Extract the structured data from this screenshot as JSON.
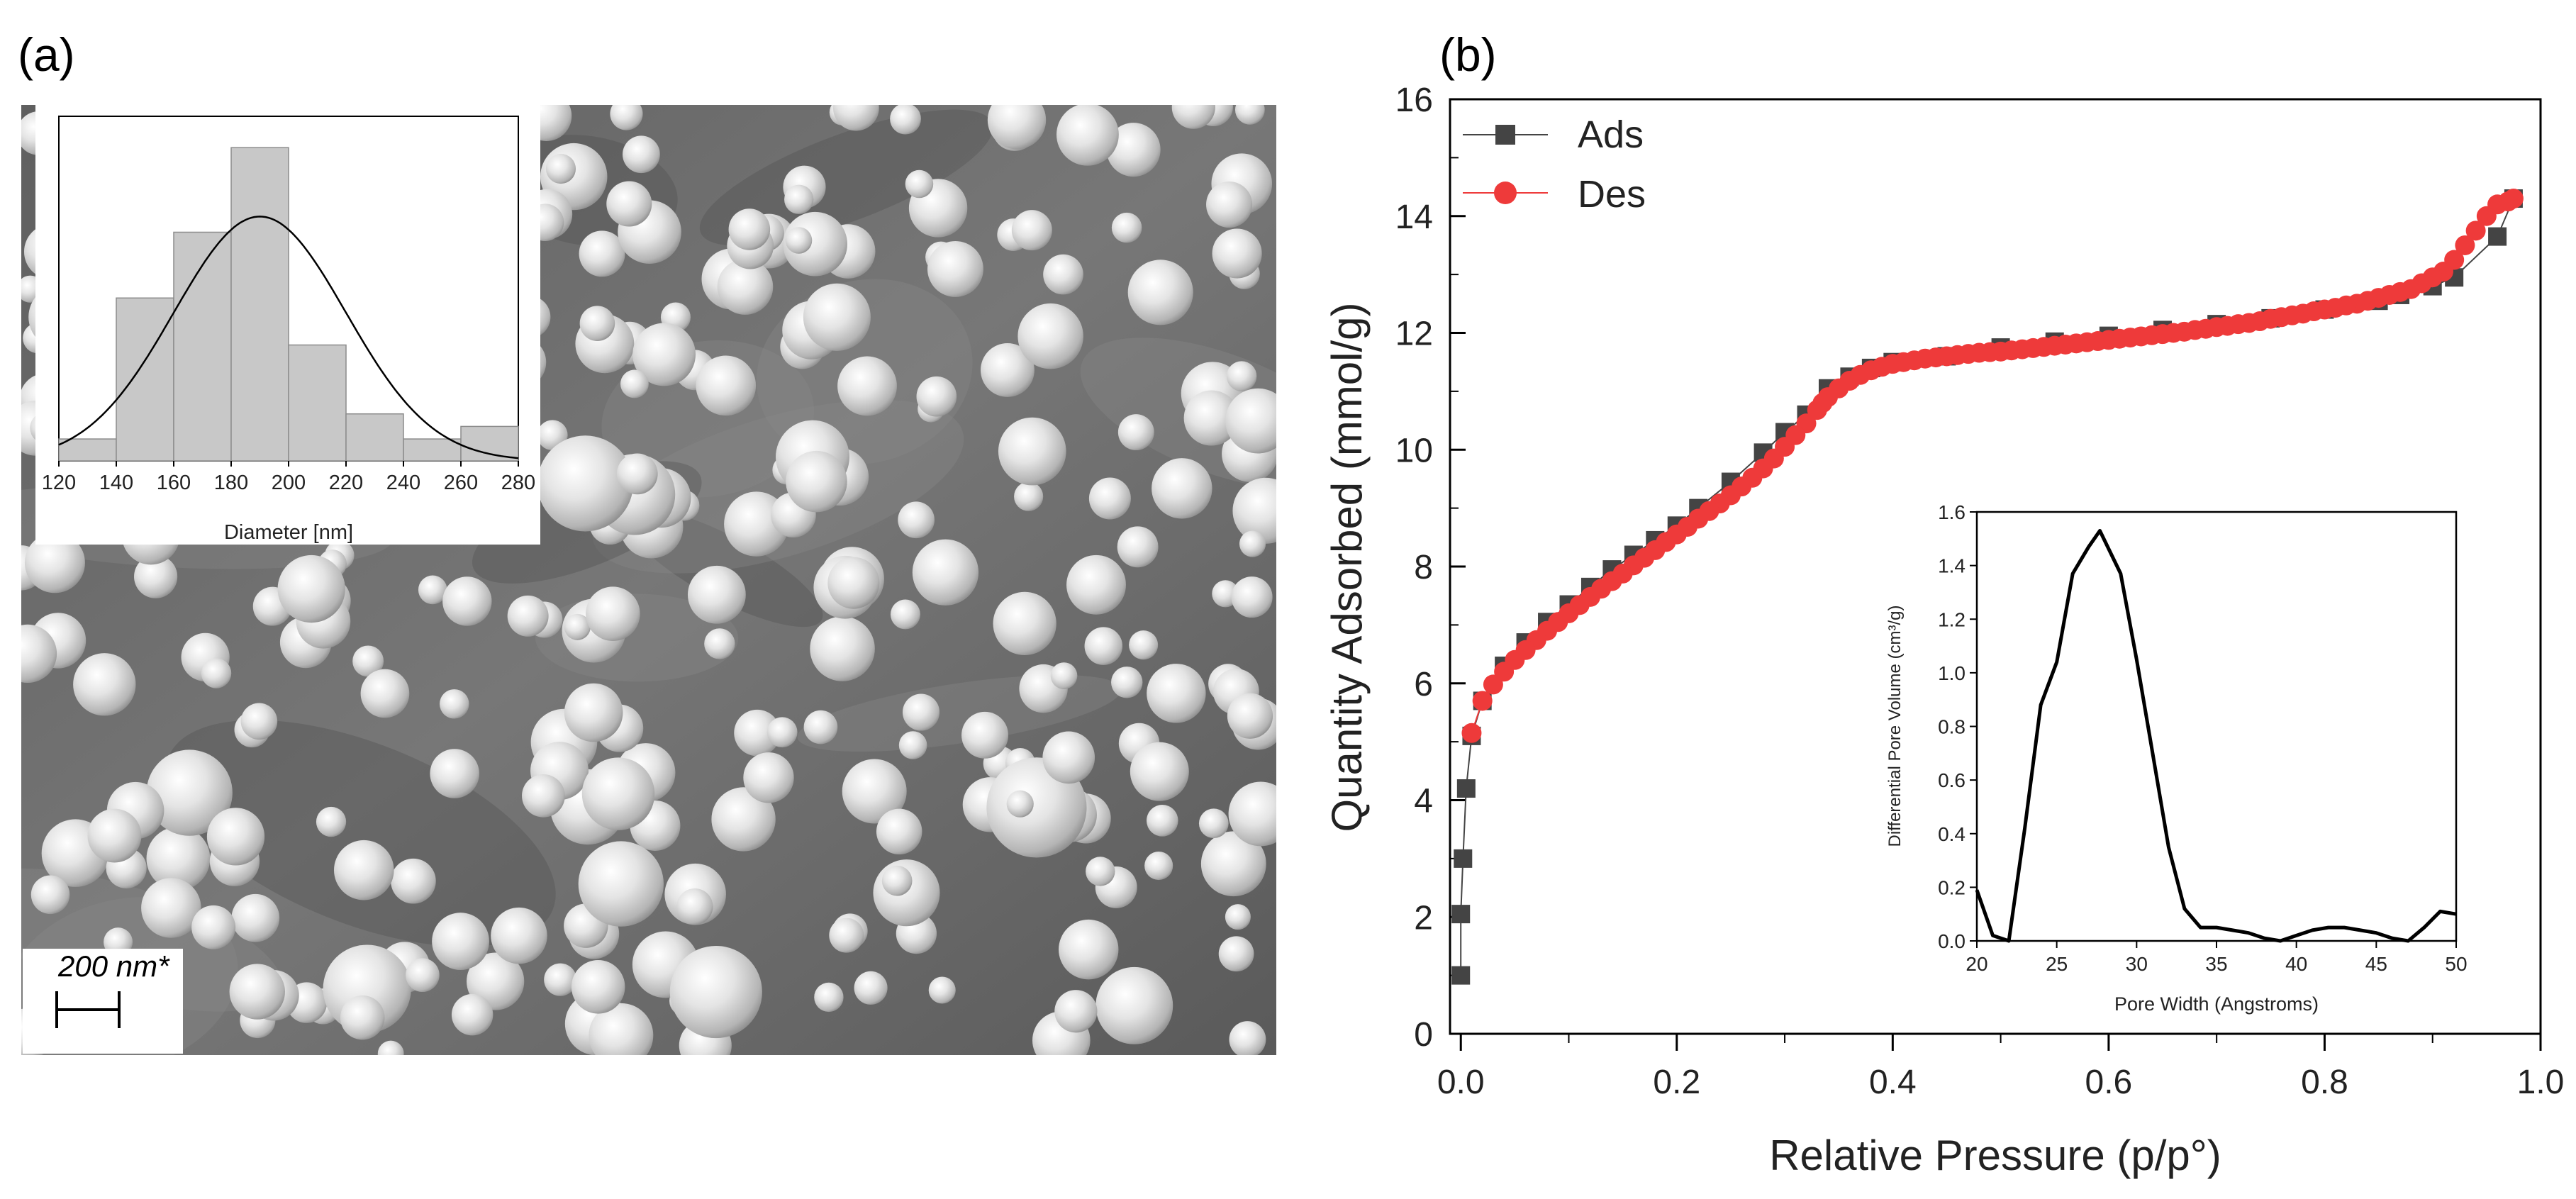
{
  "panels": {
    "a": {
      "label": "(a)",
      "scale_bar_text": "200 nm*"
    },
    "b": {
      "label": "(b)"
    }
  },
  "chart_data": [
    {
      "id": "histogram-inset",
      "type": "bar",
      "xlabel": "Diameter [nm]",
      "ylabel": "",
      "title": "",
      "x_ticks": [
        120,
        140,
        160,
        180,
        200,
        220,
        240,
        260,
        280
      ],
      "bins": [
        {
          "x0": 120,
          "x1": 140,
          "count": 0.07
        },
        {
          "x0": 140,
          "x1": 160,
          "count": 0.52
        },
        {
          "x0": 160,
          "x1": 180,
          "count": 0.73
        },
        {
          "x0": 180,
          "x1": 200,
          "count": 1.0
        },
        {
          "x0": 200,
          "x1": 220,
          "count": 0.37
        },
        {
          "x0": 220,
          "x1": 240,
          "count": 0.15
        },
        {
          "x0": 240,
          "x1": 260,
          "count": 0.07
        },
        {
          "x0": 260,
          "x1": 280,
          "count": 0.11
        }
      ],
      "fit": {
        "type": "gaussian",
        "mean": 190,
        "sigma": 30,
        "peak": 0.78
      },
      "bar_color": "#c8c8c8",
      "ylim": [
        0,
        1.1
      ],
      "xlim": [
        120,
        280
      ]
    },
    {
      "id": "isotherm",
      "type": "line",
      "xlabel": "Relative Pressure (p/p°)",
      "ylabel": "Quantity Adsorbed (mmol/g)",
      "title": "",
      "xlim": [
        -0.01,
        1.0
      ],
      "ylim": [
        0,
        16
      ],
      "x_ticks": [
        "0.0",
        "0.2",
        "0.4",
        "0.6",
        "0.8",
        "1.0"
      ],
      "y_ticks": [
        "0",
        "2",
        "4",
        "6",
        "8",
        "10",
        "12",
        "14",
        "16"
      ],
      "legend_position": "top-left",
      "series": [
        {
          "name": "Ads",
          "color": "#444444",
          "marker": "square",
          "x": [
            0.0,
            0.0,
            0.002,
            0.005,
            0.01,
            0.02,
            0.04,
            0.06,
            0.08,
            0.1,
            0.12,
            0.14,
            0.16,
            0.18,
            0.2,
            0.22,
            0.25,
            0.28,
            0.3,
            0.32,
            0.34,
            0.36,
            0.38,
            0.4,
            0.45,
            0.5,
            0.55,
            0.6,
            0.65,
            0.7,
            0.75,
            0.8,
            0.85,
            0.87,
            0.9,
            0.92,
            0.96,
            0.975
          ],
          "y": [
            1.0,
            2.05,
            3.0,
            4.2,
            5.1,
            5.7,
            6.3,
            6.7,
            7.05,
            7.35,
            7.65,
            7.95,
            8.2,
            8.45,
            8.7,
            9.0,
            9.45,
            9.95,
            10.3,
            10.6,
            11.05,
            11.25,
            11.4,
            11.5,
            11.6,
            11.75,
            11.85,
            11.95,
            12.05,
            12.15,
            12.25,
            12.4,
            12.55,
            12.65,
            12.8,
            12.95,
            13.65,
            14.3
          ]
        },
        {
          "name": "Des",
          "color": "#ee3a3a",
          "marker": "circle",
          "x": [
            0.975,
            0.97,
            0.96,
            0.95,
            0.94,
            0.93,
            0.92,
            0.91,
            0.9,
            0.89,
            0.88,
            0.87,
            0.86,
            0.85,
            0.84,
            0.83,
            0.82,
            0.81,
            0.8,
            0.79,
            0.78,
            0.77,
            0.76,
            0.75,
            0.74,
            0.73,
            0.72,
            0.71,
            0.7,
            0.69,
            0.68,
            0.67,
            0.66,
            0.65,
            0.64,
            0.63,
            0.62,
            0.61,
            0.6,
            0.59,
            0.58,
            0.57,
            0.56,
            0.55,
            0.54,
            0.53,
            0.52,
            0.51,
            0.5,
            0.49,
            0.48,
            0.47,
            0.46,
            0.45,
            0.44,
            0.43,
            0.42,
            0.41,
            0.4,
            0.39,
            0.38,
            0.37,
            0.36,
            0.35,
            0.34,
            0.335,
            0.33,
            0.32,
            0.31,
            0.3,
            0.29,
            0.28,
            0.27,
            0.26,
            0.25,
            0.24,
            0.23,
            0.22,
            0.21,
            0.2,
            0.19,
            0.18,
            0.17,
            0.16,
            0.15,
            0.14,
            0.13,
            0.12,
            0.11,
            0.1,
            0.09,
            0.08,
            0.07,
            0.06,
            0.05,
            0.04,
            0.03,
            0.02,
            0.01
          ],
          "y": [
            14.3,
            14.25,
            14.2,
            14.0,
            13.75,
            13.5,
            13.25,
            13.05,
            12.95,
            12.85,
            12.75,
            12.7,
            12.65,
            12.6,
            12.55,
            12.5,
            12.47,
            12.43,
            12.4,
            12.37,
            12.33,
            12.3,
            12.27,
            12.24,
            12.2,
            12.17,
            12.15,
            12.12,
            12.1,
            12.07,
            12.05,
            12.02,
            12.0,
            11.98,
            11.96,
            11.94,
            11.92,
            11.9,
            11.88,
            11.86,
            11.84,
            11.82,
            11.8,
            11.78,
            11.76,
            11.74,
            11.72,
            11.7,
            11.68,
            11.67,
            11.66,
            11.64,
            11.62,
            11.6,
            11.58,
            11.56,
            11.53,
            11.5,
            11.47,
            11.42,
            11.36,
            11.28,
            11.18,
            11.05,
            10.9,
            10.8,
            10.68,
            10.45,
            10.25,
            10.05,
            9.85,
            9.68,
            9.52,
            9.37,
            9.22,
            9.08,
            8.95,
            8.82,
            8.68,
            8.55,
            8.42,
            8.28,
            8.15,
            8.02,
            7.88,
            7.75,
            7.62,
            7.48,
            7.34,
            7.2,
            7.05,
            6.9,
            6.74,
            6.57,
            6.4,
            6.2,
            5.98,
            5.7,
            5.15
          ]
        }
      ]
    },
    {
      "id": "psd-inset",
      "type": "line",
      "xlabel": "Pore Width (Angstroms)",
      "ylabel": "Differential Pore Volume (cm³/g)",
      "title": "",
      "xlim": [
        20,
        50
      ],
      "ylim": [
        0,
        1.6
      ],
      "x_ticks": [
        "20",
        "25",
        "30",
        "35",
        "40",
        "45",
        "50"
      ],
      "y_ticks": [
        "0.0",
        "0.2",
        "0.4",
        "0.6",
        "0.8",
        "1.0",
        "1.2",
        "1.4",
        "1.6"
      ],
      "series": [
        {
          "name": "",
          "color": "#000000",
          "x": [
            20,
            21,
            22,
            23,
            24,
            25,
            26,
            27,
            27.7,
            29,
            30,
            31,
            32,
            33,
            34,
            35,
            36,
            37,
            38,
            39,
            40,
            41,
            42,
            43,
            44,
            45,
            46,
            47,
            48,
            49,
            50
          ],
          "y": [
            0.19,
            0.02,
            0.0,
            0.42,
            0.88,
            1.04,
            1.37,
            1.47,
            1.53,
            1.37,
            1.05,
            0.7,
            0.35,
            0.12,
            0.05,
            0.05,
            0.04,
            0.03,
            0.01,
            0.0,
            0.02,
            0.04,
            0.05,
            0.05,
            0.04,
            0.03,
            0.01,
            0.0,
            0.05,
            0.11,
            0.1
          ]
        }
      ]
    }
  ]
}
